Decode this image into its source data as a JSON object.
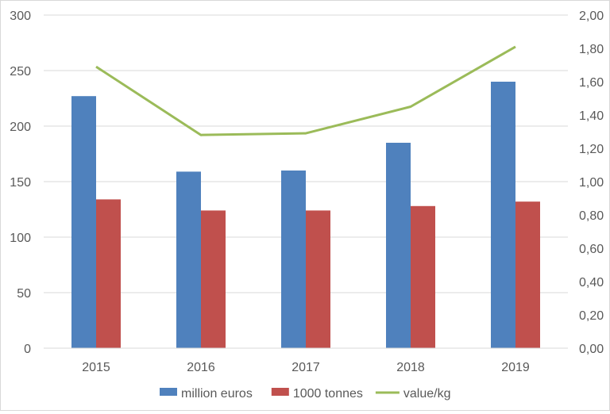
{
  "chart_data": {
    "type": "bar",
    "title": "",
    "xlabel": "",
    "ylabel": "",
    "categories": [
      "2015",
      "2016",
      "2017",
      "2018",
      "2019"
    ],
    "ylim": [
      0,
      300
    ],
    "y_ticks": [
      "0",
      "50",
      "100",
      "150",
      "200",
      "250",
      "300"
    ],
    "y2lim": [
      0,
      2.0
    ],
    "y2_ticks": [
      "0,00",
      "0,20",
      "0,40",
      "0,60",
      "0,80",
      "1,00",
      "1,20",
      "1,40",
      "1,60",
      "1,80",
      "2,00"
    ],
    "grid": true,
    "legend_position": "bottom",
    "series": [
      {
        "name": "million euros",
        "type": "bar",
        "axis": "left",
        "color": "#4f81bd",
        "values": [
          227,
          159,
          160,
          185,
          240
        ]
      },
      {
        "name": "1000 tonnes",
        "type": "bar",
        "axis": "left",
        "color": "#c0504d",
        "values": [
          134,
          124,
          124,
          128,
          132
        ]
      },
      {
        "name": "value/kg",
        "type": "line",
        "axis": "right",
        "color": "#9bbb59",
        "values": [
          1.69,
          1.28,
          1.29,
          1.45,
          1.81
        ]
      }
    ]
  }
}
